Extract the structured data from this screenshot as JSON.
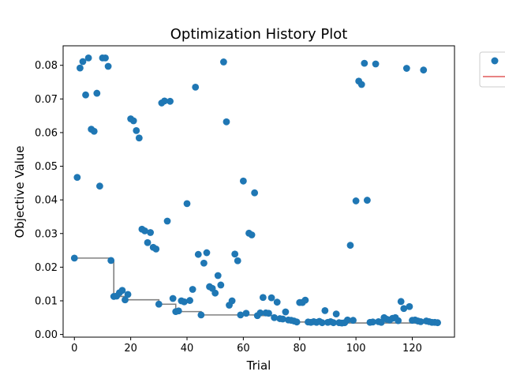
{
  "chart_data": {
    "type": "scatter",
    "title": "Optimization History Plot",
    "xlabel": "Trial",
    "ylabel": "Objective Value",
    "xlim": [
      -4,
      135
    ],
    "ylim": [
      -0.0008,
      0.0858
    ],
    "x_ticks": [
      "0",
      "20",
      "40",
      "60",
      "80",
      "100",
      "120"
    ],
    "y_ticks": [
      "0.00",
      "0.01",
      "0.02",
      "0.03",
      "0.04",
      "0.05",
      "0.06",
      "0.07",
      "0.08"
    ],
    "legend_position": "top-right (clipped)",
    "grid": false,
    "colors": {
      "points": "#1f77b4",
      "best_line": "#808080",
      "legend_line": "#e05a5a"
    },
    "series": [
      {
        "kind": "scatter",
        "points": [
          [
            0,
            0.0227
          ],
          [
            1,
            0.0467
          ],
          [
            2,
            0.0792
          ],
          [
            3,
            0.0811
          ],
          [
            4,
            0.0712
          ],
          [
            5,
            0.0822
          ],
          [
            6,
            0.061
          ],
          [
            7,
            0.0604
          ],
          [
            8,
            0.0717
          ],
          [
            9,
            0.0441
          ],
          [
            10,
            0.0822
          ],
          [
            11,
            0.0822
          ],
          [
            12,
            0.0797
          ],
          [
            13,
            0.022
          ],
          [
            14,
            0.0113
          ],
          [
            15,
            0.0114
          ],
          [
            16,
            0.0124
          ],
          [
            17,
            0.0131
          ],
          [
            18,
            0.0103
          ],
          [
            19,
            0.0119
          ],
          [
            20,
            0.0641
          ],
          [
            21,
            0.0635
          ],
          [
            22,
            0.0606
          ],
          [
            23,
            0.0584
          ],
          [
            24,
            0.0313
          ],
          [
            25,
            0.0308
          ],
          [
            26,
            0.0273
          ],
          [
            27,
            0.0303
          ],
          [
            28,
            0.0259
          ],
          [
            29,
            0.0254
          ],
          [
            30,
            0.009
          ],
          [
            31,
            0.0688
          ],
          [
            32,
            0.0694
          ],
          [
            33,
            0.0337
          ],
          [
            34,
            0.0693
          ],
          [
            35,
            0.0107
          ],
          [
            36,
            0.0068
          ],
          [
            37,
            0.007
          ],
          [
            38,
            0.01
          ],
          [
            39,
            0.0097
          ],
          [
            40,
            0.0389
          ],
          [
            41,
            0.0101
          ],
          [
            42,
            0.0134
          ],
          [
            43,
            0.0735
          ],
          [
            44,
            0.0238
          ],
          [
            45,
            0.0058
          ],
          [
            46,
            0.0212
          ],
          [
            47,
            0.0243
          ],
          [
            48,
            0.0142
          ],
          [
            49,
            0.0137
          ],
          [
            50,
            0.0123
          ],
          [
            51,
            0.0175
          ],
          [
            52,
            0.0147
          ],
          [
            53,
            0.081
          ],
          [
            54,
            0.0632
          ],
          [
            55,
            0.0087
          ],
          [
            56,
            0.01
          ],
          [
            57,
            0.0239
          ],
          [
            58,
            0.0219
          ],
          [
            59,
            0.0058
          ],
          [
            60,
            0.0456
          ],
          [
            61,
            0.0063
          ],
          [
            62,
            0.0301
          ],
          [
            63,
            0.0296
          ],
          [
            64,
            0.0421
          ],
          [
            65,
            0.0056
          ],
          [
            66,
            0.0064
          ],
          [
            67,
            0.011
          ],
          [
            68,
            0.0064
          ],
          [
            69,
            0.0063
          ],
          [
            70,
            0.0109
          ],
          [
            71,
            0.005
          ],
          [
            72,
            0.0096
          ],
          [
            73,
            0.0047
          ],
          [
            74,
            0.0046
          ],
          [
            75,
            0.0067
          ],
          [
            76,
            0.0043
          ],
          [
            77,
            0.0042
          ],
          [
            78,
            0.004
          ],
          [
            79,
            0.0037
          ],
          [
            80,
            0.0095
          ],
          [
            81,
            0.0095
          ],
          [
            82,
            0.0102
          ],
          [
            83,
            0.0037
          ],
          [
            84,
            0.0036
          ],
          [
            85,
            0.0038
          ],
          [
            86,
            0.0036
          ],
          [
            87,
            0.0039
          ],
          [
            88,
            0.0035
          ],
          [
            89,
            0.0071
          ],
          [
            90,
            0.0036
          ],
          [
            91,
            0.0038
          ],
          [
            92,
            0.0035
          ],
          [
            93,
            0.0061
          ],
          [
            94,
            0.0035
          ],
          [
            95,
            0.0034
          ],
          [
            96,
            0.0035
          ],
          [
            97,
            0.0043
          ],
          [
            98,
            0.0265
          ],
          [
            99,
            0.0042
          ],
          [
            100,
            0.0397
          ],
          [
            101,
            0.0753
          ],
          [
            102,
            0.0743
          ],
          [
            103,
            0.0806
          ],
          [
            104,
            0.0399
          ],
          [
            105,
            0.0036
          ],
          [
            106,
            0.0037
          ],
          [
            107,
            0.0804
          ],
          [
            108,
            0.0038
          ],
          [
            109,
            0.0036
          ],
          [
            110,
            0.005
          ],
          [
            111,
            0.0045
          ],
          [
            112,
            0.0043
          ],
          [
            113,
            0.0048
          ],
          [
            114,
            0.005
          ],
          [
            115,
            0.0041
          ],
          [
            116,
            0.0098
          ],
          [
            117,
            0.0077
          ],
          [
            118,
            0.0791
          ],
          [
            119,
            0.0083
          ],
          [
            120,
            0.0042
          ],
          [
            121,
            0.0043
          ],
          [
            122,
            0.004
          ],
          [
            123,
            0.0038
          ],
          [
            124,
            0.0786
          ],
          [
            125,
            0.004
          ],
          [
            126,
            0.0038
          ],
          [
            127,
            0.0036
          ],
          [
            128,
            0.0036
          ],
          [
            129,
            0.0035
          ]
        ]
      },
      {
        "kind": "step-line",
        "points": [
          [
            0,
            0.0227
          ],
          [
            13,
            0.022
          ],
          [
            14,
            0.0113
          ],
          [
            18,
            0.0103
          ],
          [
            30,
            0.009
          ],
          [
            36,
            0.0068
          ],
          [
            45,
            0.0058
          ],
          [
            65,
            0.0056
          ],
          [
            71,
            0.005
          ],
          [
            73,
            0.0047
          ],
          [
            74,
            0.0046
          ],
          [
            76,
            0.0043
          ],
          [
            77,
            0.0042
          ],
          [
            78,
            0.004
          ],
          [
            79,
            0.0037
          ],
          [
            84,
            0.0036
          ],
          [
            88,
            0.0035
          ],
          [
            95,
            0.0034
          ],
          [
            129,
            0.0034
          ]
        ]
      }
    ]
  }
}
